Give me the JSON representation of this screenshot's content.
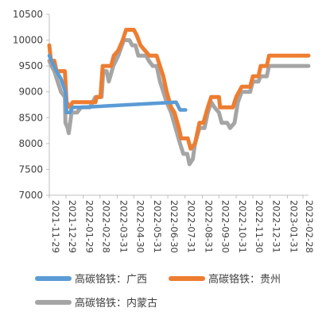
{
  "chart_data": {
    "type": "line",
    "title": "",
    "xlabel": "",
    "ylabel": "",
    "ylim": [
      7000,
      10500
    ],
    "yticks": [
      7000,
      7500,
      8000,
      8500,
      9000,
      9500,
      10000,
      10500
    ],
    "xrange": [
      "2021-11-29",
      "2023-03-10"
    ],
    "xtick_labels": [
      "2021-11-29",
      "2021-12-29",
      "2022-01-29",
      "2022-02-28",
      "2022-03-31",
      "2022-04-30",
      "2022-05-31",
      "2022-06-30",
      "2022-07-31",
      "2022-08-31",
      "2022-09-30",
      "2022-10-31",
      "2022-11-30",
      "2022-12-31",
      "2023-01-31",
      "2023-02-28"
    ],
    "grid": false,
    "legend_position": "bottom",
    "series": [
      {
        "name": "高碳铬铁：广西",
        "color": "#5B9BD5",
        "points": [
          [
            "2021-11-29",
            9700
          ],
          [
            "2021-12-05",
            9550
          ],
          [
            "2021-12-12",
            9400
          ],
          [
            "2021-12-20",
            9250
          ],
          [
            "2021-12-28",
            9000
          ],
          [
            "2021-12-30",
            8600
          ],
          [
            "2022-01-05",
            8600
          ],
          [
            "2022-01-10",
            8700
          ],
          [
            "2022-01-25",
            8700
          ],
          [
            "2022-07-15",
            8800
          ],
          [
            "2022-07-22",
            8650
          ],
          [
            "2022-08-01",
            8650
          ]
        ]
      },
      {
        "name": "高碳铬铁：贵州",
        "color": "#ED7D31",
        "points": [
          [
            "2021-11-29",
            9900
          ],
          [
            "2021-12-02",
            9600
          ],
          [
            "2021-12-08",
            9600
          ],
          [
            "2021-12-12",
            9400
          ],
          [
            "2021-12-27",
            9400
          ],
          [
            "2021-12-30",
            8800
          ],
          [
            "2022-01-05",
            8700
          ],
          [
            "2022-01-10",
            8800
          ],
          [
            "2022-02-20",
            8800
          ],
          [
            "2022-02-22",
            8900
          ],
          [
            "2022-03-01",
            8900
          ],
          [
            "2022-03-05",
            9500
          ],
          [
            "2022-03-20",
            9500
          ],
          [
            "2022-03-25",
            9700
          ],
          [
            "2022-04-02",
            9800
          ],
          [
            "2022-04-10",
            10000
          ],
          [
            "2022-04-16",
            10200
          ],
          [
            "2022-04-30",
            10200
          ],
          [
            "2022-05-05",
            10100
          ],
          [
            "2022-05-12",
            9900
          ],
          [
            "2022-05-20",
            9800
          ],
          [
            "2022-05-28",
            9700
          ],
          [
            "2022-06-10",
            9700
          ],
          [
            "2022-06-16",
            9500
          ],
          [
            "2022-06-22",
            9300
          ],
          [
            "2022-06-28",
            9000
          ],
          [
            "2022-07-06",
            8700
          ],
          [
            "2022-07-12",
            8600
          ],
          [
            "2022-07-20",
            8300
          ],
          [
            "2022-07-24",
            8100
          ],
          [
            "2022-08-05",
            8100
          ],
          [
            "2022-08-10",
            7900
          ],
          [
            "2022-08-18",
            8000
          ],
          [
            "2022-08-22",
            8200
          ],
          [
            "2022-08-26",
            8400
          ],
          [
            "2022-09-02",
            8400
          ],
          [
            "2022-09-10",
            8700
          ],
          [
            "2022-09-16",
            8900
          ],
          [
            "2022-09-30",
            8900
          ],
          [
            "2022-10-02",
            8700
          ],
          [
            "2022-10-25",
            8700
          ],
          [
            "2022-10-31",
            8900
          ],
          [
            "2022-11-10",
            9100
          ],
          [
            "2022-11-25",
            9100
          ],
          [
            "2022-11-30",
            9300
          ],
          [
            "2022-12-10",
            9300
          ],
          [
            "2022-12-14",
            9500
          ],
          [
            "2022-12-25",
            9500
          ],
          [
            "2022-12-29",
            9700
          ],
          [
            "2023-03-10",
            9700
          ]
        ]
      },
      {
        "name": "高碳铬铁：内蒙古",
        "color": "#A5A5A5",
        "points": [
          [
            "2021-11-29",
            9600
          ],
          [
            "2021-12-03",
            9500
          ],
          [
            "2021-12-08",
            9400
          ],
          [
            "2021-12-14",
            9200
          ],
          [
            "2021-12-20",
            9000
          ],
          [
            "2021-12-27",
            8900
          ],
          [
            "2021-12-28",
            8400
          ],
          [
            "2022-01-01",
            8300
          ],
          [
            "2022-01-03",
            8200
          ],
          [
            "2022-01-08",
            8600
          ],
          [
            "2022-01-18",
            8600
          ],
          [
            "2022-01-25",
            8700
          ],
          [
            "2022-02-10",
            8700
          ],
          [
            "2022-02-20",
            8900
          ],
          [
            "2022-03-03",
            8900
          ],
          [
            "2022-03-06",
            9400
          ],
          [
            "2022-03-12",
            9400
          ],
          [
            "2022-03-16",
            9200
          ],
          [
            "2022-03-24",
            9500
          ],
          [
            "2022-04-02",
            9700
          ],
          [
            "2022-04-12",
            10000
          ],
          [
            "2022-04-22",
            10000
          ],
          [
            "2022-04-27",
            9900
          ],
          [
            "2022-05-03",
            9900
          ],
          [
            "2022-05-08",
            9700
          ],
          [
            "2022-05-22",
            9700
          ],
          [
            "2022-05-27",
            9600
          ],
          [
            "2022-06-03",
            9500
          ],
          [
            "2022-06-10",
            9500
          ],
          [
            "2022-06-16",
            9200
          ],
          [
            "2022-06-22",
            9000
          ],
          [
            "2022-06-28",
            8800
          ],
          [
            "2022-07-06",
            8600
          ],
          [
            "2022-07-14",
            8300
          ],
          [
            "2022-07-22",
            8000
          ],
          [
            "2022-07-28",
            7800
          ],
          [
            "2022-08-04",
            7800
          ],
          [
            "2022-08-08",
            7600
          ],
          [
            "2022-08-14",
            7700
          ],
          [
            "2022-08-18",
            8000
          ],
          [
            "2022-08-26",
            8300
          ],
          [
            "2022-09-04",
            8300
          ],
          [
            "2022-09-10",
            8600
          ],
          [
            "2022-09-16",
            8800
          ],
          [
            "2022-09-22",
            8700
          ],
          [
            "2022-09-30",
            8600
          ],
          [
            "2022-10-05",
            8400
          ],
          [
            "2022-10-15",
            8400
          ],
          [
            "2022-10-20",
            8300
          ],
          [
            "2022-10-28",
            8400
          ],
          [
            "2022-11-03",
            8800
          ],
          [
            "2022-11-10",
            9000
          ],
          [
            "2022-11-25",
            9000
          ],
          [
            "2022-11-30",
            9200
          ],
          [
            "2022-12-10",
            9200
          ],
          [
            "2022-12-14",
            9300
          ],
          [
            "2022-12-25",
            9300
          ],
          [
            "2022-12-29",
            9500
          ],
          [
            "2023-03-10",
            9500
          ]
        ]
      }
    ]
  }
}
